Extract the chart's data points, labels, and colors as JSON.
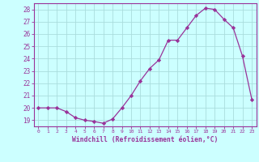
{
  "x": [
    0,
    1,
    2,
    3,
    4,
    5,
    6,
    7,
    8,
    9,
    10,
    11,
    12,
    13,
    14,
    15,
    16,
    17,
    18,
    19,
    20,
    21,
    22,
    23
  ],
  "y": [
    20.0,
    20.0,
    20.0,
    19.7,
    19.2,
    19.0,
    18.9,
    18.75,
    19.1,
    20.0,
    21.0,
    22.2,
    23.2,
    23.9,
    25.5,
    25.5,
    26.5,
    27.5,
    28.1,
    28.0,
    27.2,
    26.5,
    24.2,
    20.7
  ],
  "xlim": [
    -0.5,
    23.5
  ],
  "ylim": [
    18.5,
    28.5
  ],
  "yticks": [
    19,
    20,
    21,
    22,
    23,
    24,
    25,
    26,
    27,
    28
  ],
  "xtick_labels": [
    "0",
    "1",
    "2",
    "3",
    "4",
    "5",
    "6",
    "7",
    "8",
    "9",
    "10",
    "11",
    "12",
    "13",
    "14",
    "15",
    "16",
    "17",
    "18",
    "19",
    "20",
    "21",
    "22",
    "23"
  ],
  "xlabel": "Windchill (Refroidissement éolien,°C)",
  "line_color": "#993399",
  "marker": "D",
  "marker_size": 2.2,
  "bg_color": "#ccffff",
  "grid_color": "#aadddd",
  "axis_color": "#993399",
  "tick_color": "#993399",
  "label_color": "#993399"
}
